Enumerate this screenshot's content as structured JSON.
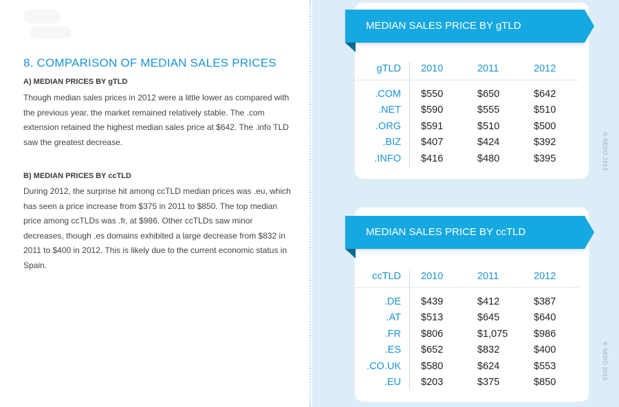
{
  "left": {
    "section_title": "8. COMPARISON OF MEDIAN SALES PRICES",
    "sub_a": "A) MEDIAN PRICES BY gTLD",
    "para_a": "Though median sales prices in 2012 were a little lower as compared with the previous year, the market remained relatively stable. The .com extension retained the highest median sales price at $642. The .info TLD saw the greatest decrease.",
    "sub_b": "B) MEDIAN PRICES BY ccTLD",
    "para_b": "During 2012, the surprise hit among ccTLD median prices was .eu, which has seen a price increase from $375 in 2011 to $850. The top median price among ccTLDs was .fr, at $986. Other ccTLDs saw minor decreases, though .es domains exhibited a large decrease from $832 in 2011 to $400 in 2012. This is likely due to the current economic status in Spain."
  },
  "gtld": {
    "banner": "MEDIAN SALES PRICE BY gTLD",
    "headers": [
      "gTLD",
      "2010",
      "2011",
      "2012"
    ],
    "rows": [
      [
        ".COM",
        "$550",
        "$650",
        "$642"
      ],
      [
        ".NET",
        "$590",
        "$555",
        "$510"
      ],
      [
        ".ORG",
        "$591",
        "$510",
        "$500"
      ],
      [
        ".BIZ",
        "$407",
        "$424",
        "$392"
      ],
      [
        ".INFO",
        "$416",
        "$480",
        "$395"
      ]
    ],
    "copyright": "© SEDO 2013"
  },
  "cctld": {
    "banner": "MEDIAN SALES PRICE BY ccTLD",
    "headers": [
      "ccTLD",
      "2010",
      "2011",
      "2012"
    ],
    "rows": [
      [
        ".DE",
        "$439",
        "$412",
        "$387"
      ],
      [
        ".AT",
        "$513",
        "$645",
        "$640"
      ],
      [
        ".FR",
        "$806",
        "$1,075",
        "$986"
      ],
      [
        ".ES",
        "$652",
        "$832",
        "$400"
      ],
      [
        ".CO.UK",
        "$580",
        "$624",
        "$553"
      ],
      [
        ".EU",
        "$203",
        "$375",
        "$850"
      ]
    ],
    "copyright": "© SEDO 2013"
  },
  "colors": {
    "accent": "#1a95d3",
    "banner": "#16a8e0",
    "panel_bg": "#dcedf8"
  }
}
